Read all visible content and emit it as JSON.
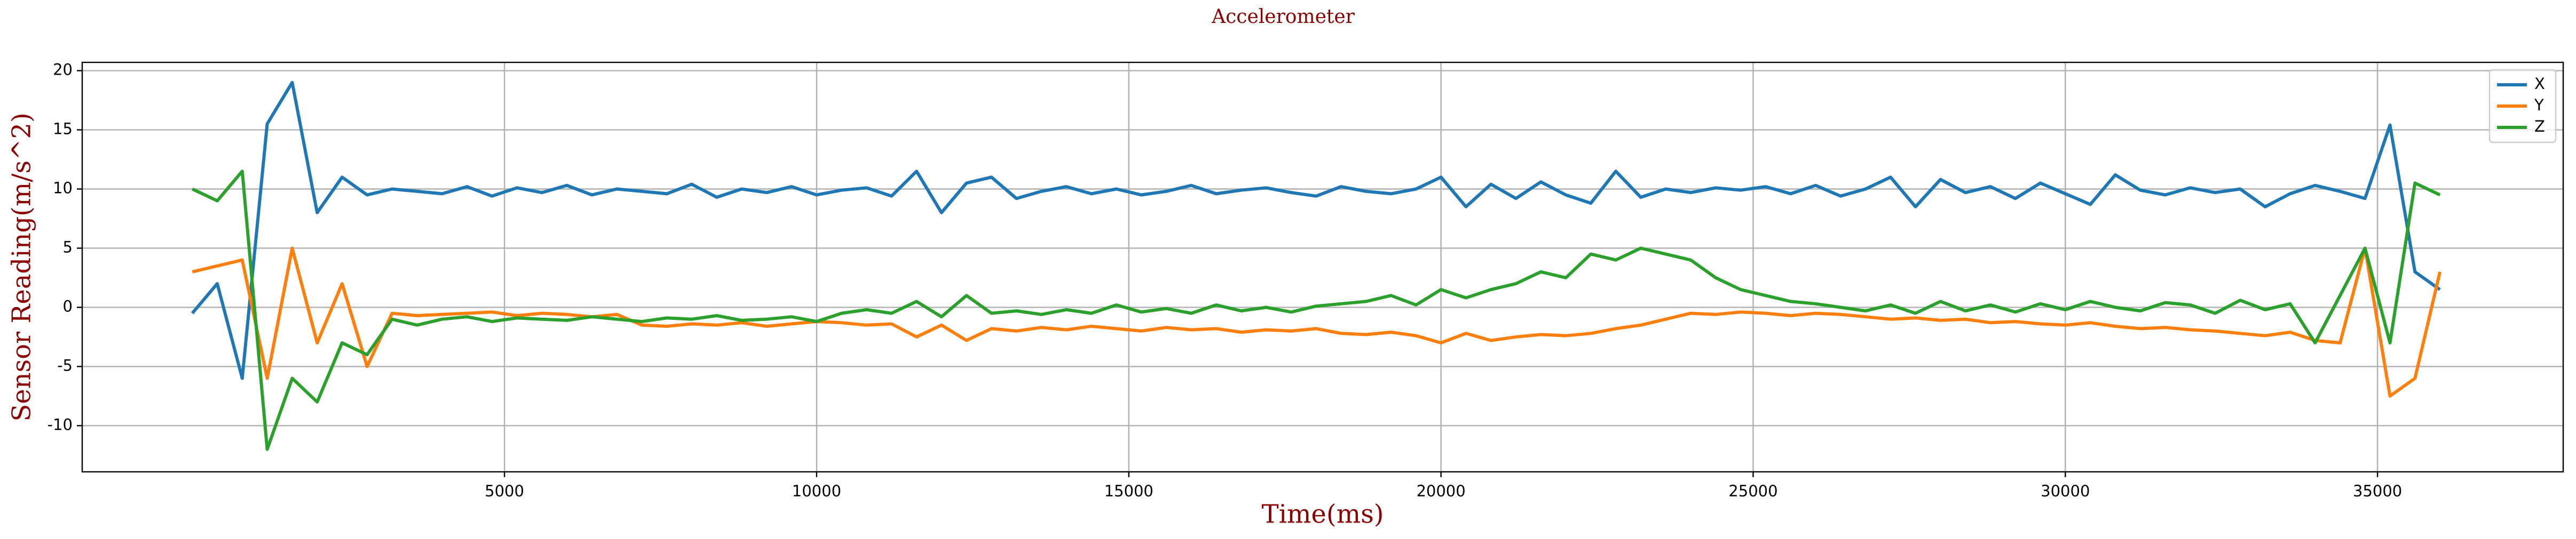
{
  "chart_data": {
    "type": "line",
    "title": "Accelerometer",
    "xlabel": "Time(ms)",
    "ylabel": "Sensor Reading(m/s^2)",
    "x": [
      0,
      400,
      800,
      1200,
      1600,
      2000,
      2400,
      2800,
      3200,
      3600,
      4000,
      4400,
      4800,
      5200,
      5600,
      6000,
      6400,
      6800,
      7200,
      7600,
      8000,
      8400,
      8800,
      9200,
      9600,
      10000,
      10400,
      10800,
      11200,
      11600,
      12000,
      12400,
      12800,
      13200,
      13600,
      14000,
      14400,
      14800,
      15200,
      15600,
      16000,
      16400,
      16800,
      17200,
      17600,
      18000,
      18400,
      18800,
      19200,
      19600,
      20000,
      20400,
      20800,
      21200,
      21600,
      22000,
      22400,
      22800,
      23200,
      23600,
      24000,
      24400,
      24800,
      25200,
      25600,
      26000,
      26400,
      26800,
      27200,
      27600,
      28000,
      28400,
      28800,
      29200,
      29600,
      30000,
      30400,
      30800,
      31200,
      31600,
      32000,
      32400,
      32800,
      33200,
      33600,
      34000,
      34400,
      34800,
      35200,
      35600,
      36000
    ],
    "series": [
      {
        "name": "X",
        "color": "#1f77b4",
        "values": [
          -0.5,
          2,
          -6,
          15.5,
          19,
          8,
          11,
          9.5,
          10,
          9.8,
          9.6,
          10.2,
          9.4,
          10.1,
          9.7,
          10.3,
          9.5,
          10,
          9.8,
          9.6,
          10.4,
          9.3,
          10,
          9.7,
          10.2,
          9.5,
          9.9,
          10.1,
          9.4,
          11.5,
          8,
          10.5,
          11,
          9.2,
          9.8,
          10.2,
          9.6,
          10,
          9.5,
          9.8,
          10.3,
          9.6,
          9.9,
          10.1,
          9.7,
          9.4,
          10.2,
          9.8,
          9.6,
          10,
          11,
          8.5,
          10.4,
          9.2,
          10.6,
          9.5,
          8.8,
          11.5,
          9.3,
          10,
          9.7,
          10.1,
          9.9,
          10.2,
          9.6,
          10.3,
          9.4,
          10,
          11,
          8.5,
          10.8,
          9.7,
          10.2,
          9.2,
          10.5,
          9.6,
          8.7,
          11.2,
          9.9,
          9.5,
          10.1,
          9.7,
          10,
          8.5,
          9.6,
          10.3,
          9.8,
          9.2,
          15.4,
          3,
          1.5
        ]
      },
      {
        "name": "Y",
        "color": "#ff7f0e",
        "values": [
          3,
          3.5,
          4,
          -6,
          5,
          -3,
          2,
          -5,
          -0.5,
          -0.7,
          -0.6,
          -0.5,
          -0.4,
          -0.7,
          -0.5,
          -0.6,
          -0.8,
          -0.6,
          -1.5,
          -1.6,
          -1.4,
          -1.5,
          -1.3,
          -1.6,
          -1.4,
          -1.2,
          -1.3,
          -1.5,
          -1.4,
          -2.5,
          -1.5,
          -2.8,
          -1.8,
          -2,
          -1.7,
          -1.9,
          -1.6,
          -1.8,
          -2,
          -1.7,
          -1.9,
          -1.8,
          -2.1,
          -1.9,
          -2,
          -1.8,
          -2.2,
          -2.3,
          -2.1,
          -2.4,
          -3,
          -2.2,
          -2.8,
          -2.5,
          -2.3,
          -2.4,
          -2.2,
          -1.8,
          -1.5,
          -1,
          -0.5,
          -0.6,
          -0.4,
          -0.5,
          -0.7,
          -0.5,
          -0.6,
          -0.8,
          -1,
          -0.9,
          -1.1,
          -1,
          -1.3,
          -1.2,
          -1.4,
          -1.5,
          -1.3,
          -1.6,
          -1.8,
          -1.7,
          -1.9,
          -2,
          -2.2,
          -2.4,
          -2.1,
          -2.8,
          -3,
          5,
          -7.5,
          -6,
          3
        ]
      },
      {
        "name": "Z",
        "color": "#2ca02c",
        "values": [
          10,
          9,
          11.5,
          -12,
          -6,
          -8,
          -3,
          -4,
          -1,
          -1.5,
          -1,
          -0.8,
          -1.2,
          -0.9,
          -1,
          -1.1,
          -0.8,
          -1,
          -1.2,
          -0.9,
          -1,
          -0.7,
          -1.1,
          -1,
          -0.8,
          -1.2,
          -0.5,
          -0.2,
          -0.5,
          0.5,
          -0.8,
          1,
          -0.5,
          -0.3,
          -0.6,
          -0.2,
          -0.5,
          0.2,
          -0.4,
          -0.1,
          -0.5,
          0.2,
          -0.3,
          0,
          -0.4,
          0.1,
          0.3,
          0.5,
          1,
          0.2,
          1.5,
          0.8,
          1.5,
          2,
          3,
          2.5,
          4.5,
          4,
          5,
          4.5,
          4,
          2.5,
          1.5,
          1,
          0.5,
          0.3,
          0,
          -0.3,
          0.2,
          -0.5,
          0.5,
          -0.3,
          0.2,
          -0.4,
          0.3,
          -0.2,
          0.5,
          0,
          -0.3,
          0.4,
          0.2,
          -0.5,
          0.6,
          -0.2,
          0.3,
          -3,
          1,
          5,
          -3,
          10.5,
          9.5
        ]
      }
    ],
    "xlim": [
      -1763,
      37974
    ],
    "xticks": [
      5000,
      10000,
      15000,
      20000,
      25000,
      30000,
      35000
    ],
    "ylim": [
      -13.9,
      20.7
    ],
    "yticks": [
      -10,
      -5,
      0,
      5,
      10,
      15,
      20
    ],
    "grid": true,
    "legend": "upper right"
  }
}
